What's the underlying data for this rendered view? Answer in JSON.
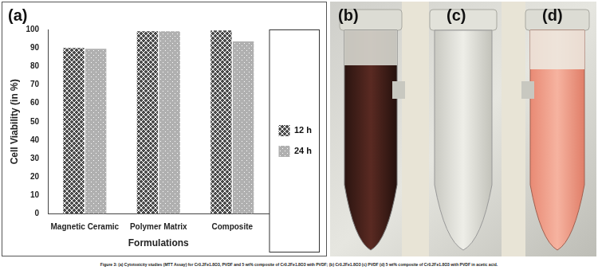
{
  "chart_data": {
    "type": "bar",
    "x_label": "Formulations",
    "y_label": "Cell Viability (in %)",
    "categories": [
      "Magnetic Ceramic",
      "Polymer Matrix",
      "Composite"
    ],
    "series": [
      {
        "name": "12 h",
        "color": "#4a4a4a",
        "values": [
          90,
          99,
          99.5
        ]
      },
      {
        "name": "24 h",
        "color": "#b0b0b0",
        "values": [
          89.5,
          99,
          93.5
        ]
      }
    ],
    "ylim": [
      0,
      100
    ],
    "yticks": [
      0,
      10,
      20,
      30,
      40,
      50,
      60,
      70,
      80,
      90,
      100
    ],
    "grid": false,
    "legend": "right"
  },
  "panel_labels": [
    "(a)",
    "(b)",
    "(c)",
    "(d)"
  ],
  "caption": "Figure 3: (a) Cytotoxicity studies (MTT Assay) for Cr0.2Fe1.8O3, PVDF and 5 wt% composite of Cr0.2Fe1.8O3 with PVDF; (b) Cr0.2Fe1.8O3 (c) PVDF (d) 5 wt% composite of Cr0.2Fe1.8O3 with PVDF in acetic acid."
}
